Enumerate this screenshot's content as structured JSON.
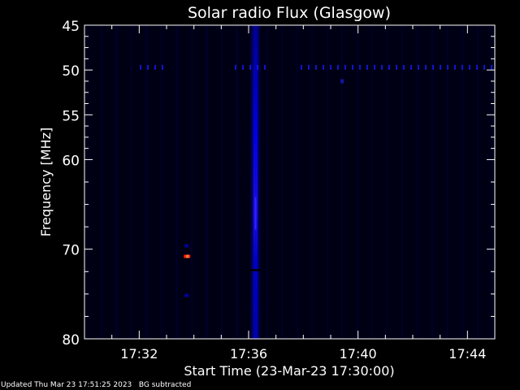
{
  "chart_data": {
    "type": "heatmap",
    "title": "Solar radio Flux (Glasgow)",
    "xlabel": "Start Time (23-Mar-23 17:30:00)",
    "ylabel": "Frequency [MHz]",
    "xlim": [
      "17:30",
      "17:45"
    ],
    "ylim": [
      45,
      80
    ],
    "y_inverted": true,
    "x_ticks": [
      "17:32",
      "17:36",
      "17:40",
      "17:44"
    ],
    "y_ticks": [
      "45",
      "50",
      "55",
      "60",
      "70",
      "80"
    ],
    "colormap": [
      "#000010",
      "#0000ff",
      "#ff0000",
      "#ff8000"
    ],
    "background_color": "#000018",
    "features": [
      {
        "kind": "burst",
        "time": "17:36:15",
        "freq_range": [
          45,
          80
        ],
        "peak_freq": 66,
        "intensity": 0.8
      },
      {
        "kind": "interference-line",
        "freq": 49.7,
        "time_range": [
          "17:30",
          "17:45"
        ],
        "intensity": 0.5
      },
      {
        "kind": "spot",
        "time": "17:33:45",
        "freq": 70.8,
        "intensity": 1.0
      },
      {
        "kind": "spot",
        "time": "17:39:25",
        "freq": 51.3,
        "intensity": 0.6
      }
    ],
    "grid": false
  },
  "footer": {
    "updated": "Updated Thu Mar 23 17:51:25 2023",
    "note": "BG subtracted"
  }
}
